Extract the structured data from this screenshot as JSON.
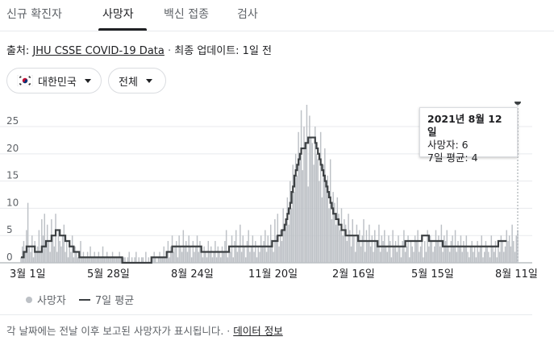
{
  "tabs": [
    {
      "label": "신규 확진자",
      "active": false
    },
    {
      "label": "사망자",
      "active": true
    },
    {
      "label": "백신 접종",
      "active": false
    },
    {
      "label": "검사",
      "active": false
    }
  ],
  "source": {
    "prefix": "출처: ",
    "link": "JHU CSSE COVID-19 Data",
    "sep": " · ",
    "updated": "최종 업데이트: 1일 전"
  },
  "filters": {
    "region": {
      "label": "대한민국",
      "icon": "korea-flag-icon"
    },
    "scope": {
      "label": "전체"
    }
  },
  "tooltip": {
    "date": "2021년 8월 12일",
    "deaths": "사망자: 6",
    "avg": "7일 평균: 4"
  },
  "legend": {
    "daily": "사망자",
    "average": "7일 평균"
  },
  "footer": {
    "note": "각 날짜에는 전날 이후 보고된 사망자가 표시됩니다.",
    "sep": " · ",
    "link": "데이터 정보"
  },
  "colors": {
    "bars": "#bdc1c6",
    "line": "#3c4043",
    "grid": "#e8eaed",
    "hover": "#9aa0a6"
  },
  "chart_data": {
    "type": "bar",
    "ylim": [
      0,
      29
    ],
    "yticks": [
      0,
      5,
      10,
      15,
      20,
      25
    ],
    "xtick_labels": [
      "3월 1일",
      "5월 28일",
      "8월 24일",
      "11월 20일",
      "2월 16일",
      "5월 15일",
      "8월 11일"
    ],
    "series": [
      {
        "name": "사망자",
        "kind": "daily",
        "values": [
          1,
          3,
          4,
          2,
          6,
          11,
          3,
          2,
          5,
          1,
          4,
          2,
          3,
          6,
          2,
          8,
          5,
          9,
          3,
          7,
          4,
          2,
          8,
          5,
          3,
          9,
          2,
          6,
          4,
          3,
          5,
          7,
          2,
          4,
          1,
          3,
          2,
          5,
          1,
          3,
          2,
          1,
          2,
          4,
          1,
          2,
          1,
          1,
          2,
          1,
          3,
          1,
          1,
          2,
          1,
          1,
          2,
          1,
          1,
          3,
          1,
          1,
          2,
          1,
          1,
          1,
          2,
          1,
          1,
          1,
          1,
          2,
          1,
          0,
          1,
          1,
          0,
          1,
          2,
          0,
          1,
          0,
          1,
          2,
          0,
          1,
          0,
          1,
          1,
          0,
          2,
          0,
          1,
          0,
          1,
          1,
          2,
          1,
          0,
          1,
          2,
          1,
          1,
          3,
          1,
          2,
          4,
          1,
          3,
          5,
          2,
          3,
          4,
          1,
          5,
          3,
          2,
          6,
          3,
          4,
          2,
          5,
          3,
          1,
          4,
          2,
          3,
          5,
          2,
          4,
          3,
          1,
          3,
          2,
          1,
          4,
          2,
          3,
          1,
          2,
          4,
          1,
          3,
          2,
          1,
          3,
          2,
          4,
          6,
          1,
          3,
          2,
          5,
          1,
          4,
          6,
          2,
          3,
          7,
          2,
          5,
          3,
          1,
          4,
          6,
          2,
          3,
          5,
          2,
          4,
          1,
          3,
          2,
          5,
          3,
          4,
          6,
          2,
          5,
          3,
          7,
          4,
          2,
          8,
          5,
          9,
          3,
          6,
          4,
          10,
          6,
          8,
          12,
          7,
          15,
          10,
          18,
          13,
          20,
          16,
          24,
          19,
          28,
          17,
          25,
          21,
          29,
          14,
          27,
          23,
          22,
          18,
          25,
          20,
          19,
          15,
          24,
          12,
          18,
          21,
          14,
          16,
          10,
          19,
          8,
          13,
          11,
          7,
          12,
          9,
          6,
          10,
          5,
          8,
          7,
          4,
          9,
          6,
          3,
          8,
          5,
          2,
          7,
          4,
          6,
          3,
          5,
          8,
          2,
          6,
          4,
          7,
          3,
          5,
          2,
          6,
          4,
          3,
          7,
          2,
          5,
          4,
          6,
          3,
          2,
          5,
          4,
          1,
          6,
          3,
          4,
          2,
          5,
          3,
          1,
          4,
          6,
          2,
          3,
          5,
          1,
          4,
          3,
          2,
          5,
          4,
          6,
          2,
          3,
          5,
          1,
          4,
          2,
          6,
          3,
          5,
          4,
          2,
          3,
          6,
          4,
          5,
          3,
          7,
          2,
          5,
          4,
          6,
          3,
          2,
          4,
          5,
          3,
          6,
          2,
          4,
          3,
          5,
          2,
          4,
          3,
          5,
          2,
          1,
          3,
          4,
          2,
          3,
          1,
          4,
          2,
          3,
          5,
          1,
          2,
          4,
          3,
          2,
          1,
          5,
          3,
          2,
          4,
          1,
          3,
          2,
          5,
          4,
          2,
          3,
          6,
          4,
          5,
          3,
          7,
          4,
          2,
          5,
          6
        ]
      },
      {
        "name": "7일 평균",
        "kind": "average",
        "values": [
          1,
          1,
          2,
          2,
          3,
          3,
          3,
          3,
          3,
          3,
          2,
          2,
          2,
          2,
          2,
          3,
          3,
          3,
          4,
          4,
          4,
          4,
          5,
          5,
          5,
          6,
          6,
          6,
          5,
          5,
          5,
          5,
          4,
          4,
          4,
          3,
          3,
          3,
          2,
          2,
          2,
          2,
          1,
          1,
          1,
          1,
          1,
          1,
          1,
          1,
          1,
          1,
          1,
          1,
          1,
          1,
          1,
          1,
          1,
          1,
          1,
          1,
          1,
          1,
          1,
          1,
          1,
          1,
          1,
          1,
          1,
          1,
          1,
          0,
          0,
          0,
          0,
          0,
          0,
          0,
          0,
          0,
          0,
          0,
          0,
          0,
          0,
          0,
          0,
          0,
          0,
          0,
          0,
          0,
          1,
          1,
          1,
          1,
          1,
          1,
          1,
          1,
          1,
          1,
          1,
          2,
          2,
          2,
          2,
          3,
          3,
          3,
          3,
          3,
          3,
          3,
          3,
          3,
          3,
          3,
          3,
          3,
          3,
          3,
          3,
          3,
          3,
          3,
          3,
          3,
          2,
          2,
          2,
          2,
          2,
          2,
          2,
          2,
          2,
          2,
          2,
          2,
          2,
          2,
          2,
          2,
          2,
          2,
          2,
          2,
          3,
          3,
          3,
          3,
          3,
          3,
          3,
          3,
          3,
          3,
          3,
          3,
          3,
          3,
          3,
          3,
          3,
          3,
          3,
          3,
          3,
          3,
          3,
          3,
          3,
          3,
          3,
          3,
          3,
          3,
          3,
          4,
          4,
          4,
          4,
          5,
          5,
          5,
          6,
          6,
          7,
          8,
          9,
          10,
          11,
          13,
          14,
          16,
          17,
          18,
          19,
          20,
          21,
          21,
          21,
          22,
          22,
          23,
          23,
          23,
          23,
          23,
          22,
          21,
          20,
          19,
          18,
          17,
          16,
          15,
          14,
          13,
          12,
          11,
          10,
          9,
          9,
          8,
          8,
          7,
          7,
          6,
          6,
          6,
          5,
          5,
          5,
          5,
          5,
          5,
          5,
          5,
          5,
          4,
          4,
          4,
          4,
          4,
          4,
          4,
          4,
          4,
          4,
          4,
          4,
          4,
          4,
          3,
          3,
          3,
          3,
          3,
          3,
          3,
          3,
          3,
          3,
          3,
          3,
          3,
          3,
          3,
          3,
          3,
          3,
          3,
          3,
          4,
          4,
          4,
          4,
          4,
          4,
          4,
          4,
          4,
          4,
          4,
          4,
          5,
          5,
          5,
          5,
          5,
          4,
          4,
          4,
          4,
          4,
          4,
          4,
          4,
          4,
          4,
          3,
          3,
          3,
          3,
          3,
          3,
          3,
          3,
          3,
          3,
          3,
          3,
          3,
          3,
          3,
          3,
          3,
          3,
          3,
          3,
          3,
          3,
          3,
          3,
          3,
          3,
          3,
          3,
          3,
          3,
          3,
          3,
          3,
          3,
          3,
          3,
          3,
          3,
          3,
          3,
          4,
          4,
          4,
          4,
          4,
          4,
          4
        ]
      }
    ]
  }
}
